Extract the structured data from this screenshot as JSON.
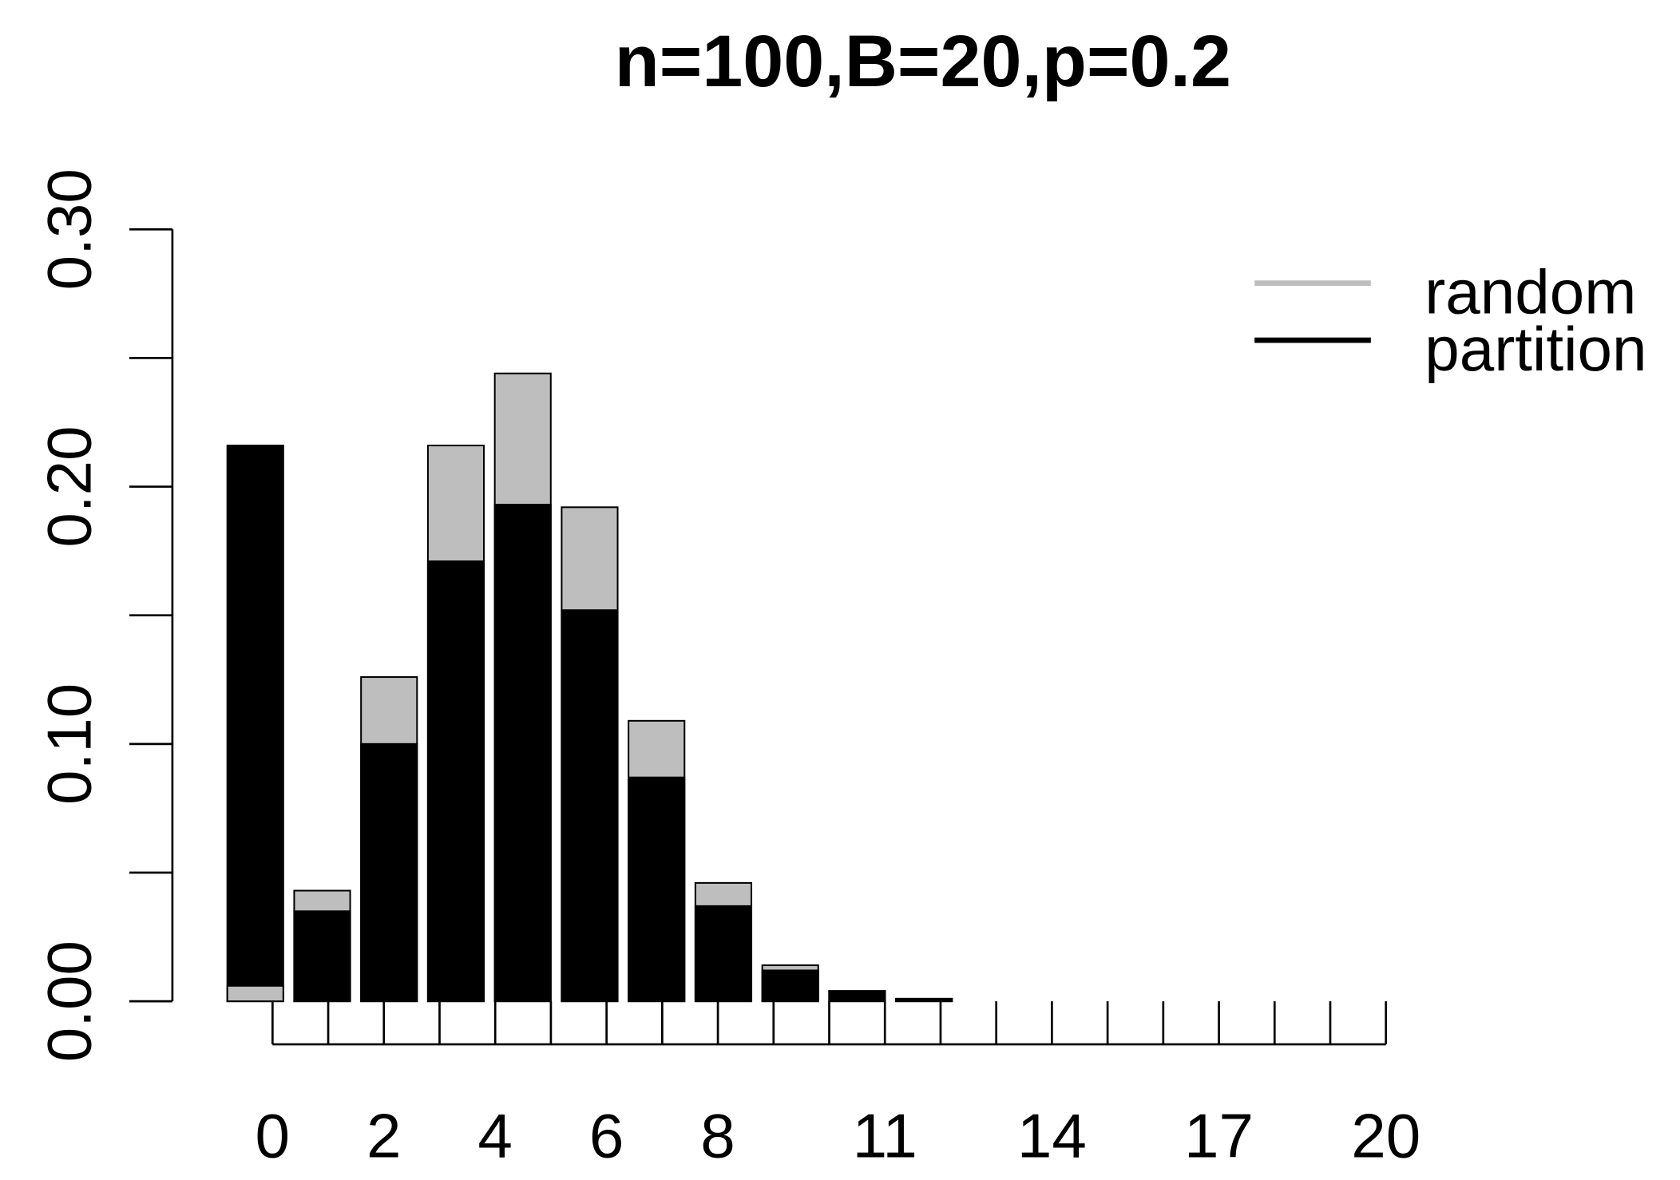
{
  "chart_data": {
    "type": "bar",
    "title": "n=100,B=20,p=0.2",
    "categories": [
      0,
      1,
      2,
      3,
      4,
      5,
      6,
      7,
      8,
      9,
      10,
      11,
      12,
      13,
      14,
      15,
      16,
      17,
      18,
      19,
      20
    ],
    "series": [
      {
        "name": "random",
        "color": "#bebebe",
        "values": [
          0.006,
          0.043,
          0.126,
          0.216,
          0.244,
          0.192,
          0.109,
          0.046,
          0.014,
          0.004,
          0.001,
          0,
          0,
          0,
          0,
          0,
          0,
          0,
          0,
          0,
          0
        ]
      },
      {
        "name": "partition",
        "color": "#000000",
        "values": [
          0.216,
          0.035,
          0.1,
          0.171,
          0.193,
          0.152,
          0.087,
          0.037,
          0.012,
          0.004,
          0.001,
          0,
          0,
          0,
          0,
          0,
          0,
          0,
          0,
          0,
          0
        ]
      }
    ],
    "ylim": [
      0,
      0.3
    ],
    "yticks": [
      {
        "value": 0,
        "label": "0.00"
      },
      {
        "value": 0.1,
        "label": "0.10"
      },
      {
        "value": 0.2,
        "label": "0.20"
      },
      {
        "value": 0.3,
        "label": "0.30"
      }
    ],
    "yminorticks": [
      0.05,
      0.15,
      0.25
    ],
    "xticks": [
      0,
      2,
      4,
      6,
      8,
      11,
      14,
      17,
      20
    ],
    "xminorticks": [
      1,
      3,
      5,
      7,
      9,
      10,
      12,
      13,
      15,
      16,
      18,
      19
    ],
    "legend": "top-right"
  }
}
